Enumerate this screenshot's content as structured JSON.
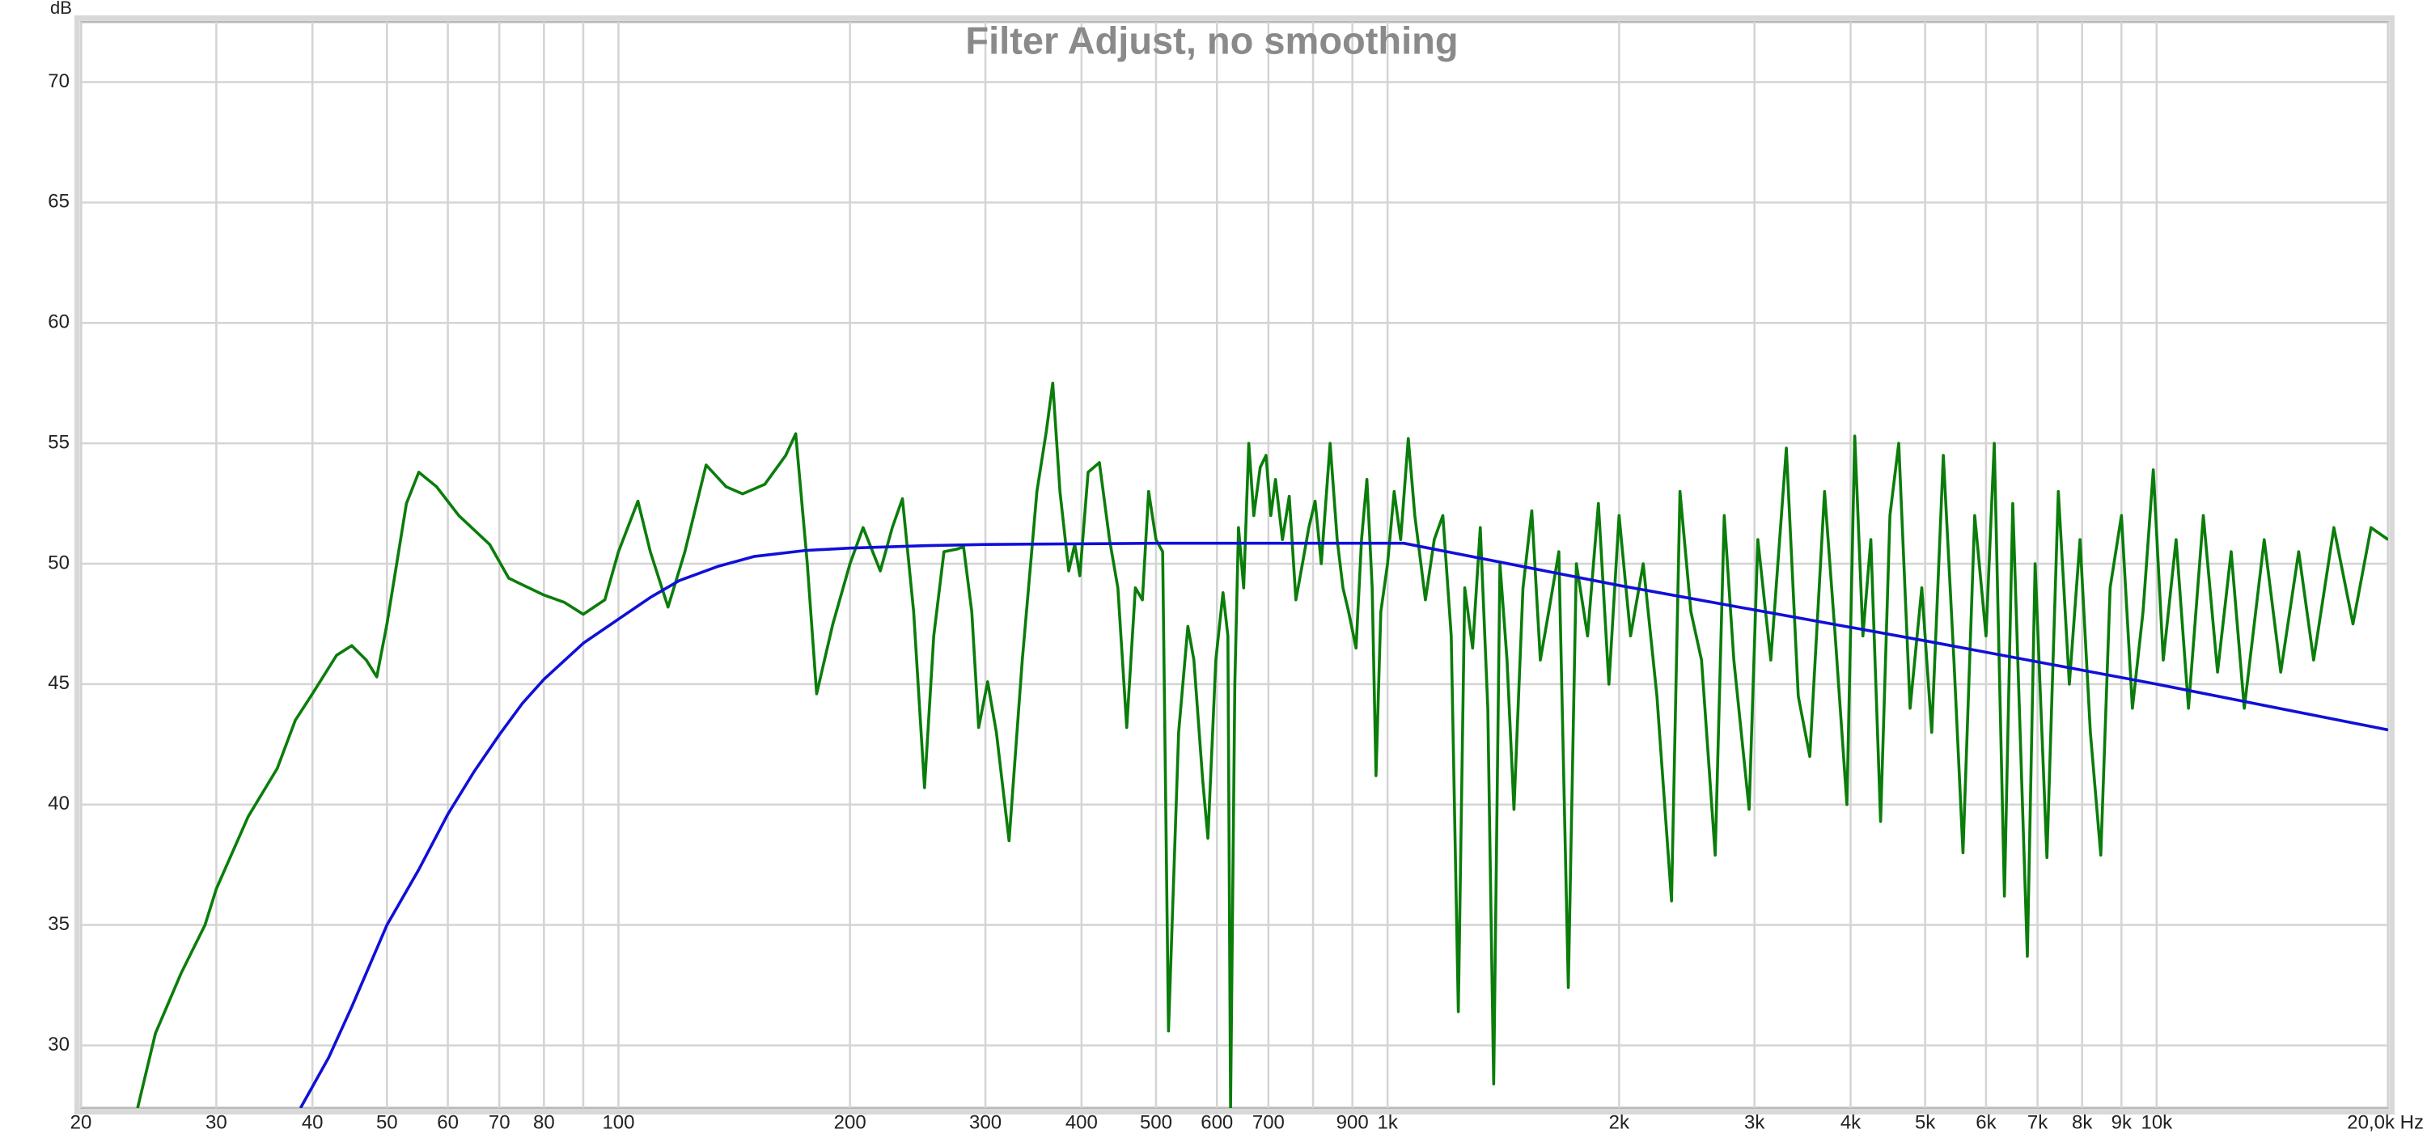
{
  "chart_data": {
    "type": "line",
    "title": "Filter Adjust, no smoothing",
    "ylabel": "dB",
    "xscale": "log",
    "grid": true,
    "xlim": [
      20,
      20000
    ],
    "ylim": [
      27.4,
      72.5
    ],
    "yticks": [
      30,
      35,
      40,
      45,
      50,
      55,
      60,
      65,
      70
    ],
    "xticks": [
      20,
      30,
      40,
      50,
      60,
      70,
      80,
      100,
      200,
      300,
      400,
      500,
      600,
      700,
      900,
      {
        "value": 1000,
        "label": "1k"
      },
      {
        "value": 2000,
        "label": "2k"
      },
      {
        "value": 3000,
        "label": "3k"
      },
      {
        "value": 4000,
        "label": "4k"
      },
      {
        "value": 5000,
        "label": "5k"
      },
      {
        "value": 6000,
        "label": "6k"
      },
      {
        "value": 7000,
        "label": "7k"
      },
      {
        "value": 8000,
        "label": "8k"
      },
      {
        "value": 9000,
        "label": "9k"
      },
      {
        "value": 10000,
        "label": "10k"
      },
      {
        "value": 20000,
        "label": "20,0k Hz"
      }
    ],
    "xgrid_minor": [
      90,
      800
    ],
    "series": [
      {
        "color": "#0a7d0a",
        "x": [
          23.7,
          25,
          27,
          29,
          30,
          33,
          36,
          38,
          40,
          43,
          45,
          47,
          48.5,
          50,
          53,
          55,
          58,
          62,
          68,
          72,
          80,
          85,
          90,
          96,
          100,
          106,
          110,
          116,
          122,
          130,
          138,
          145,
          155,
          165,
          170,
          176,
          181,
          190,
          200,
          208,
          219,
          227,
          234,
          242,
          250,
          257,
          265,
          275,
          281,
          288,
          294,
          302,
          310,
          322,
          335,
          350,
          360,
          367,
          375,
          385,
          392,
          398,
          408,
          422,
          435,
          446,
          458,
          470,
          480,
          489,
          500,
          510,
          519,
          535,
          550,
          560,
          575,
          584,
          598,
          611,
          620,
          625,
          633,
          640,
          650,
          660,
          670,
          683,
          695,
          705,
          715,
          730,
          745,
          760,
          775,
          790,
          805,
          820,
          842,
          860,
          875,
          890,
          910,
          925,
          940,
          955,
          966,
          980,
          1000,
          1020,
          1040,
          1064,
          1085,
          1100,
          1120,
          1150,
          1180,
          1210,
          1236,
          1260,
          1290,
          1320,
          1350,
          1374,
          1400,
          1430,
          1460,
          1500,
          1540,
          1580,
          1620,
          1670,
          1718,
          1760,
          1820,
          1880,
          1940,
          2000,
          2070,
          2150,
          2240,
          2340,
          2400,
          2480,
          2560,
          2667,
          2740,
          2820,
          2952,
          3030,
          3150,
          3300,
          3420,
          3540,
          3700,
          3820,
          3956,
          4050,
          4150,
          4250,
          4376,
          4500,
          4620,
          4780,
          4950,
          5100,
          5280,
          5450,
          5600,
          5800,
          6000,
          6150,
          6340,
          6500,
          6790,
          6950,
          7200,
          7450,
          7700,
          7950,
          8200,
          8460,
          8700,
          9000,
          9300,
          9600,
          9900,
          10200,
          10600,
          11000,
          11500,
          12000,
          12500,
          13000,
          13800,
          14500,
          15300,
          16000,
          17000,
          18000,
          19000,
          20000
        ],
        "values": [
          27.4,
          30.5,
          33,
          35,
          36.5,
          39.5,
          41.5,
          43.5,
          44.6,
          46.2,
          46.6,
          46,
          45.3,
          47.5,
          52.5,
          53.8,
          53.2,
          52,
          50.8,
          49.4,
          48.7,
          48.4,
          47.9,
          48.5,
          50.5,
          52.6,
          50.5,
          48.2,
          50.5,
          54.1,
          53.2,
          52.9,
          53.3,
          54.5,
          55.4,
          50,
          44.6,
          47.5,
          50,
          51.5,
          49.7,
          51.5,
          52.7,
          48,
          40.7,
          47,
          50.5,
          50.6,
          50.7,
          48,
          43.2,
          45.1,
          43,
          38.5,
          46,
          53,
          55.5,
          57.5,
          53,
          49.7,
          50.8,
          49.5,
          53.8,
          54.2,
          51,
          49,
          43.2,
          49,
          48.5,
          53,
          51,
          50.5,
          30.6,
          43,
          47.4,
          46,
          41,
          38.6,
          46,
          48.8,
          47,
          27.4,
          45,
          51.5,
          49,
          55,
          52,
          54,
          54.5,
          52,
          53.5,
          51,
          52.8,
          48.5,
          50,
          51.5,
          52.6,
          50,
          55,
          51,
          49,
          48,
          46.5,
          51,
          53.5,
          49,
          41.2,
          48,
          50,
          53,
          51,
          55.2,
          52,
          50.5,
          48.5,
          51,
          52,
          47,
          31.4,
          49,
          46.5,
          51.5,
          44,
          28.4,
          50,
          46,
          39.8,
          49,
          52.2,
          46,
          48,
          50.5,
          32.4,
          50,
          47,
          52.5,
          45,
          52,
          47,
          50,
          44.5,
          36,
          53,
          48,
          46,
          37.9,
          52,
          46,
          39.8,
          51,
          46,
          54.8,
          44.5,
          42,
          53,
          47,
          40,
          55.3,
          47,
          51,
          39.3,
          52,
          55,
          44,
          49,
          43,
          54.5,
          46,
          38,
          52,
          47,
          55,
          36.2,
          52.5,
          33.7,
          50,
          37.8,
          53,
          45,
          51,
          43,
          37.9,
          49,
          52,
          44,
          48,
          53.9,
          46,
          51,
          44,
          52,
          45.5,
          50.5,
          44,
          51,
          45.5,
          50.5,
          46,
          51.5,
          47.5,
          51.5,
          51
        ]
      },
      {
        "color": "#1010d8",
        "x": [
          38.6,
          42,
          45,
          50,
          55,
          60,
          65,
          70,
          75,
          80,
          90,
          100,
          110,
          120,
          135,
          150,
          175,
          200,
          250,
          300,
          500,
          1050,
          2000,
          5000,
          10000,
          20000
        ],
        "values": [
          27.4,
          29.5,
          31.6,
          35,
          37.3,
          39.6,
          41.4,
          42.9,
          44.2,
          45.2,
          46.7,
          47.7,
          48.6,
          49.3,
          49.9,
          50.3,
          50.55,
          50.65,
          50.75,
          50.8,
          50.85,
          50.85,
          49.1,
          46.8,
          45,
          43.1
        ]
      }
    ]
  }
}
